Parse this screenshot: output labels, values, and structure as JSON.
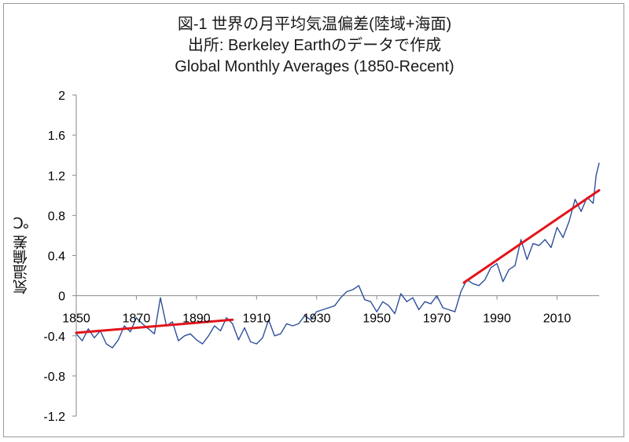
{
  "title": {
    "line1": "図-1 世界の月平均気温偏差(陸域+海面)",
    "line2": "出所: Berkeley Earthのデータで作成",
    "line3": "Global Monthly Averages (1850-Recent)"
  },
  "chart_data": {
    "type": "line",
    "title": "図-1 世界の月平均気温偏差(陸域+海面)",
    "subtitle": "出所: Berkeley Earthのデータで作成 / Global Monthly Averages (1850-Recent)",
    "xlabel": "",
    "ylabel": "気温偏差 ℃",
    "xlim": [
      1850,
      2024
    ],
    "ylim": [
      -1.2,
      2.0
    ],
    "x_ticks": [
      1850,
      1870,
      1890,
      1910,
      1930,
      1950,
      1970,
      1990,
      2010
    ],
    "y_ticks": [
      -1.2,
      -0.8,
      -0.4,
      0,
      0.4,
      0.8,
      1.2,
      1.6,
      2
    ],
    "y_tick_labels": [
      "-1.2",
      "-0.8",
      "-0.4",
      "0",
      "0.4",
      "0.8",
      "1.2",
      "1.6",
      "2"
    ],
    "grid": false,
    "series": [
      {
        "color": "#2e4f9b",
        "x": [
          1850,
          1852,
          1854,
          1856,
          1858,
          1860,
          1862,
          1864,
          1866,
          1868,
          1870,
          1872,
          1874,
          1876,
          1878,
          1880,
          1882,
          1884,
          1886,
          1888,
          1890,
          1892,
          1894,
          1896,
          1898,
          1900,
          1902,
          1904,
          1906,
          1908,
          1910,
          1912,
          1914,
          1916,
          1918,
          1920,
          1922,
          1924,
          1926,
          1928,
          1930,
          1932,
          1934,
          1936,
          1938,
          1940,
          1942,
          1944,
          1946,
          1948,
          1950,
          1952,
          1954,
          1956,
          1958,
          1960,
          1962,
          1964,
          1966,
          1968,
          1970,
          1972,
          1974,
          1976,
          1978,
          1980,
          1982,
          1984,
          1986,
          1988,
          1990,
          1992,
          1994,
          1996,
          1998,
          2000,
          2002,
          2004,
          2006,
          2008,
          2010,
          2012,
          2014,
          2016,
          2018,
          2020,
          2022,
          2023,
          2024
        ],
        "y": [
          -0.38,
          -0.45,
          -0.33,
          -0.42,
          -0.35,
          -0.48,
          -0.52,
          -0.44,
          -0.3,
          -0.36,
          -0.22,
          -0.28,
          -0.33,
          -0.38,
          -0.02,
          -0.3,
          -0.26,
          -0.45,
          -0.4,
          -0.38,
          -0.44,
          -0.48,
          -0.4,
          -0.3,
          -0.35,
          -0.22,
          -0.28,
          -0.44,
          -0.32,
          -0.46,
          -0.48,
          -0.42,
          -0.24,
          -0.4,
          -0.38,
          -0.28,
          -0.3,
          -0.28,
          -0.2,
          -0.24,
          -0.16,
          -0.14,
          -0.12,
          -0.1,
          -0.02,
          0.04,
          0.06,
          0.1,
          -0.04,
          -0.06,
          -0.16,
          -0.06,
          -0.1,
          -0.18,
          0.02,
          -0.06,
          -0.02,
          -0.14,
          -0.06,
          -0.08,
          0.0,
          -0.12,
          -0.14,
          -0.16,
          0.04,
          0.16,
          0.12,
          0.1,
          0.16,
          0.28,
          0.32,
          0.14,
          0.26,
          0.3,
          0.56,
          0.36,
          0.52,
          0.5,
          0.56,
          0.48,
          0.68,
          0.58,
          0.74,
          0.96,
          0.84,
          0.98,
          0.92,
          1.2,
          1.32
        ]
      },
      {
        "color": "#e3141b",
        "x": [
          1850,
          1902
        ],
        "y": [
          -0.37,
          -0.24
        ]
      },
      {
        "color": "#e3141b",
        "x": [
          1979,
          2024
        ],
        "y": [
          0.13,
          1.05
        ]
      }
    ]
  }
}
